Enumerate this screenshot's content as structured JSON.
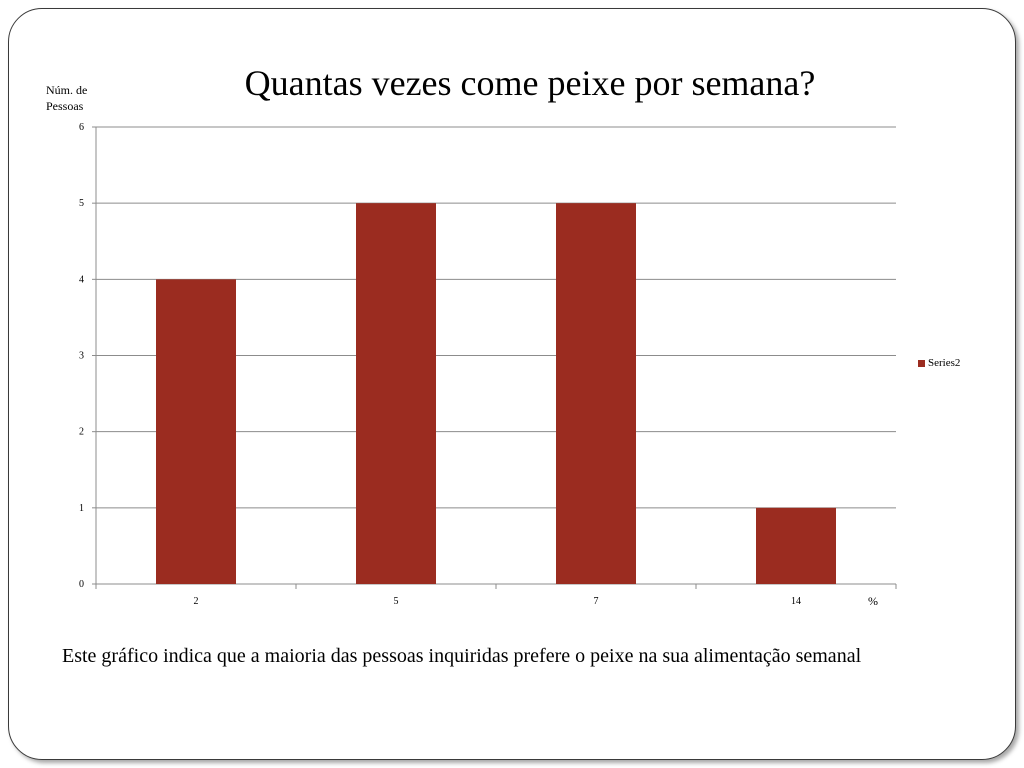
{
  "chart_data": {
    "type": "bar",
    "title": "Quantas vezes come peixe por semana?",
    "ylabel": "Núm. de Pessoas",
    "xlabel_unit": "%",
    "categories": [
      "2",
      "5",
      "7",
      "14"
    ],
    "series": [
      {
        "name": "Series2",
        "values": [
          4,
          5,
          5,
          1
        ],
        "color": "#9B2C20"
      }
    ],
    "ylim": [
      0,
      6
    ],
    "yticks": [
      "0",
      "1",
      "2",
      "3",
      "4",
      "5",
      "6"
    ],
    "grid": true,
    "legend_position": "right"
  },
  "caption": "Este gráfico indica que a maioria das pessoas inquiridas prefere o peixe na sua alimentação semanal",
  "colors": {
    "bar": "#9B2C20",
    "grid": "#8c8c8c"
  }
}
